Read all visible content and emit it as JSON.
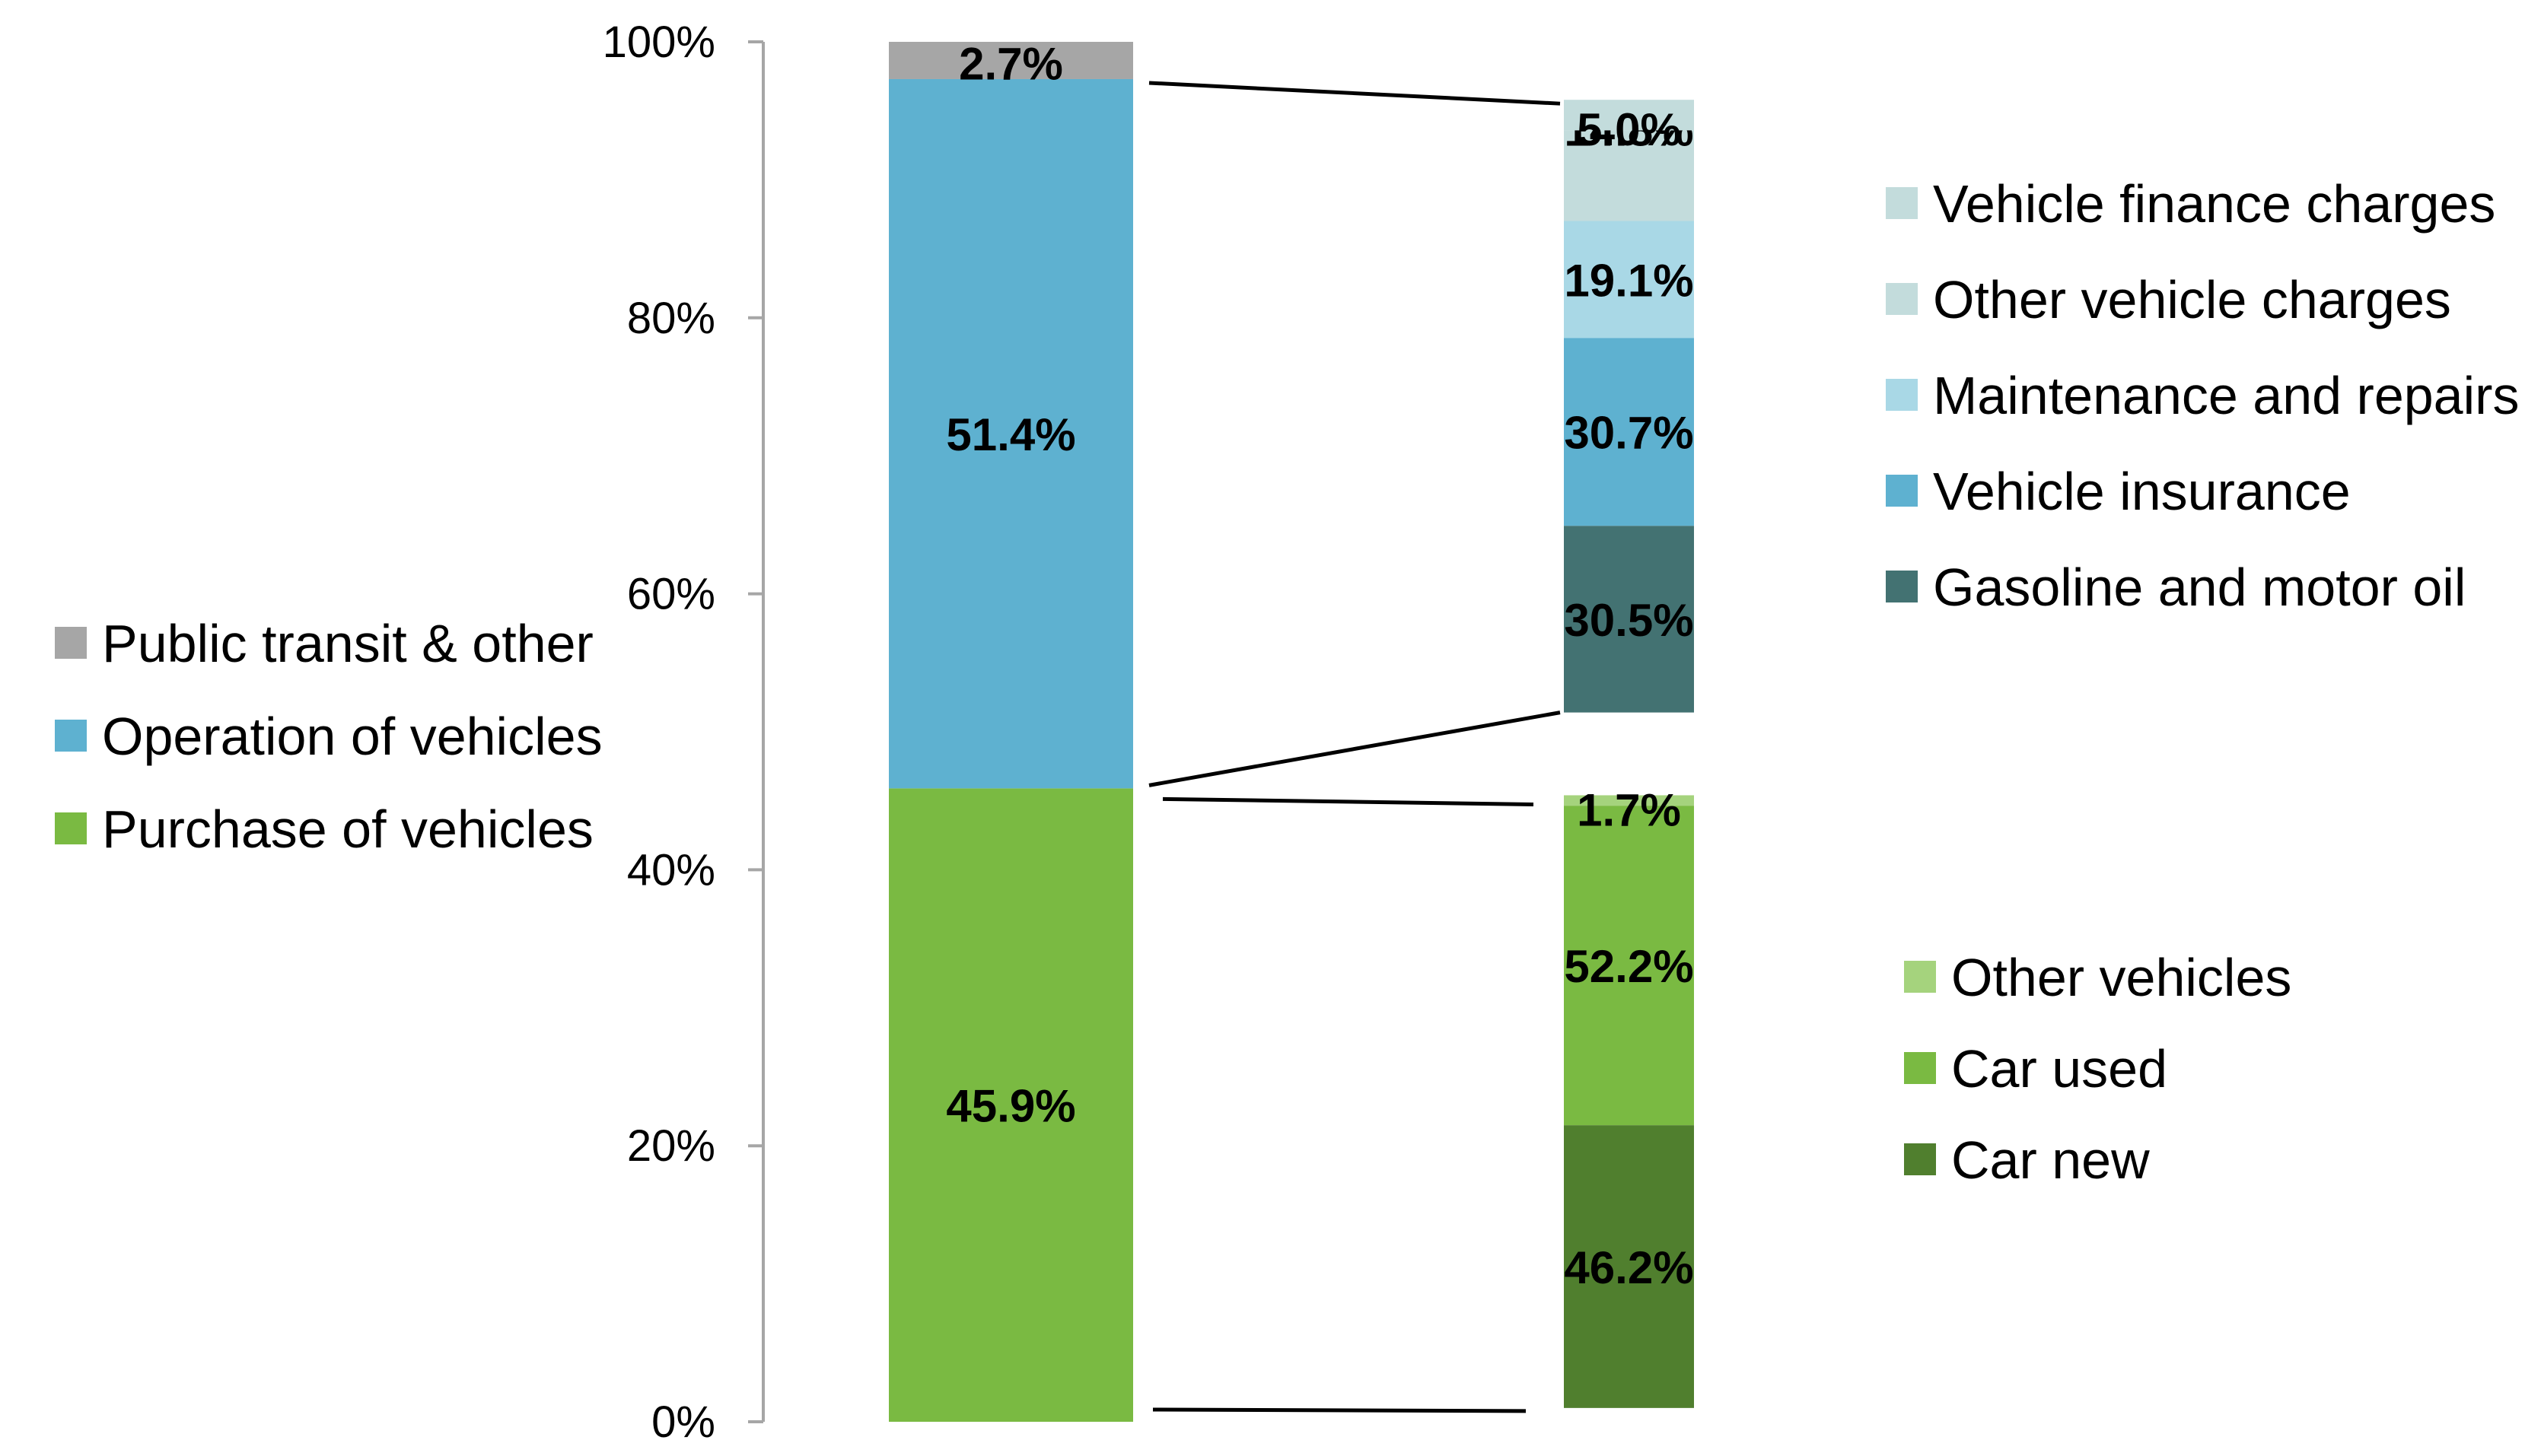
{
  "chart_data": {
    "type": "bar",
    "subtype": "bar-of-bar (stacked, with breakdown columns)",
    "ylim": [
      0,
      100
    ],
    "y_ticks": [
      "0%",
      "20%",
      "40%",
      "60%",
      "80%",
      "100%"
    ],
    "grid": false,
    "main_column": {
      "segments": [
        {
          "name": "Purchase of vehicles",
          "value": 45.9,
          "label": "45.9%",
          "color": "#7aba42"
        },
        {
          "name": "Operation of vehicles",
          "value": 51.4,
          "label": "51.4%",
          "color": "#5eb1d0"
        },
        {
          "name": "Public transit & other",
          "value": 2.7,
          "label": "2.7%",
          "color": "#a6a6a6"
        }
      ]
    },
    "operation_breakdown": {
      "range": [
        51.4,
        95.8
      ],
      "segments": [
        {
          "name": "Gasoline and motor oil",
          "value": 30.5,
          "label": "30.5%",
          "color": "#437272"
        },
        {
          "name": "Vehicle insurance",
          "value": 30.7,
          "label": "30.7%",
          "color": "#5eb1d0"
        },
        {
          "name": "Maintenance and repairs",
          "value": 19.1,
          "label": "19.1%",
          "color": "#a9d8e6"
        },
        {
          "name": "Other vehicle charges",
          "value": 14.8,
          "label": "14.8%",
          "color": "#c3dcdc"
        },
        {
          "name": "Vehicle finance charges",
          "value": 5.0,
          "label": "5.0%",
          "color": "#c3dcdc"
        }
      ]
    },
    "purchase_breakdown": {
      "range": [
        1.0,
        45.4
      ],
      "segments": [
        {
          "name": "Car new",
          "value": 46.2,
          "label": "46.2%",
          "color": "#507f2e"
        },
        {
          "name": "Car used",
          "value": 52.2,
          "label": "52.2%",
          "color": "#7aba42"
        },
        {
          "name": "Other vehicles",
          "value": 1.7,
          "label": "1.7%",
          "color": "#a5d37d"
        }
      ]
    },
    "legend_left": [
      {
        "name": "Public transit & other",
        "color": "#a6a6a6"
      },
      {
        "name": "Operation of vehicles",
        "color": "#5eb1d0"
      },
      {
        "name": "Purchase of vehicles",
        "color": "#7aba42"
      }
    ],
    "legend_right_top": [
      {
        "name": "Vehicle finance charges",
        "color": "#c3dcdc"
      },
      {
        "name": "Other vehicle charges",
        "color": "#c3dcdc"
      },
      {
        "name": "Maintenance and repairs",
        "color": "#a9d8e6"
      },
      {
        "name": "Vehicle insurance",
        "color": "#5eb1d0"
      },
      {
        "name": "Gasoline and motor oil",
        "color": "#437272"
      }
    ],
    "legend_right_bottom": [
      {
        "name": "Other vehicles",
        "color": "#a5d37d"
      },
      {
        "name": "Car used",
        "color": "#7aba42"
      },
      {
        "name": "Car new",
        "color": "#507f2e"
      }
    ]
  }
}
